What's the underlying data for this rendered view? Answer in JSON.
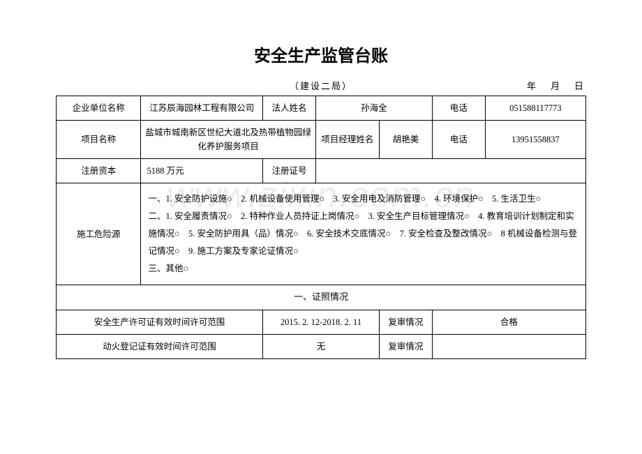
{
  "title": "安全生产监管台账",
  "meta": {
    "center": "（建设二局）",
    "right": "年　月　日"
  },
  "row1": {
    "label_company": "企业单位名称",
    "company": "江苏辰海园林工程有限公司",
    "label_legal": "法人姓名",
    "legal": "孙海全",
    "label_phone": "电话",
    "phone": "051588117773"
  },
  "row2": {
    "label_project": "项目名称",
    "project": "盐城市城南新区世纪大道北及热带植物园绿化养护服务项目",
    "label_pm": "项目经理姓名",
    "pm": "胡艳美",
    "label_phone": "电话",
    "phone": "13951558837"
  },
  "row3": {
    "label_capital": "注册资本",
    "capital": "5188 万元",
    "label_regno": "注册证号",
    "regno": ""
  },
  "hazard": {
    "label": "施工危险源",
    "text": "一、1. 安全防护设施○　2. 机械设备使用管理○　3. 安全用电及消防管理○　4. 环境保护○　5. 生活卫生○\n二、1. 安全履责情况○　2. 特种作业人员持证上岗情况○　3. 安全生产目标管理情况○　4. 教育培训计划制定和实施情况○　5. 安全防护用具（品）情况○　6. 安全技术交底情况○　7. 安全检查及整改情况○　8 机械设备检测与登记情况○　9. 施工方案及专家论证情况○\n三、其他○"
  },
  "cert_section": "一、证照情况",
  "cert1": {
    "label": "安全生产许可证有效时间许可范围",
    "period": "2015. 2. 12-2018. 2. 11",
    "review_label": "复审情况",
    "review": "合格"
  },
  "cert2": {
    "label": "动火登记证有效时间许可范围",
    "period": "无",
    "review_label": "复审情况",
    "review": ""
  },
  "watermark": "www.zixin.com.cn",
  "style": {
    "background": "#ffffff",
    "text_color": "#000000",
    "border_color": "#000000",
    "title_fontsize": 24,
    "body_fontsize": 12.5,
    "watermark_color": "rgba(200,200,200,0.35)"
  }
}
